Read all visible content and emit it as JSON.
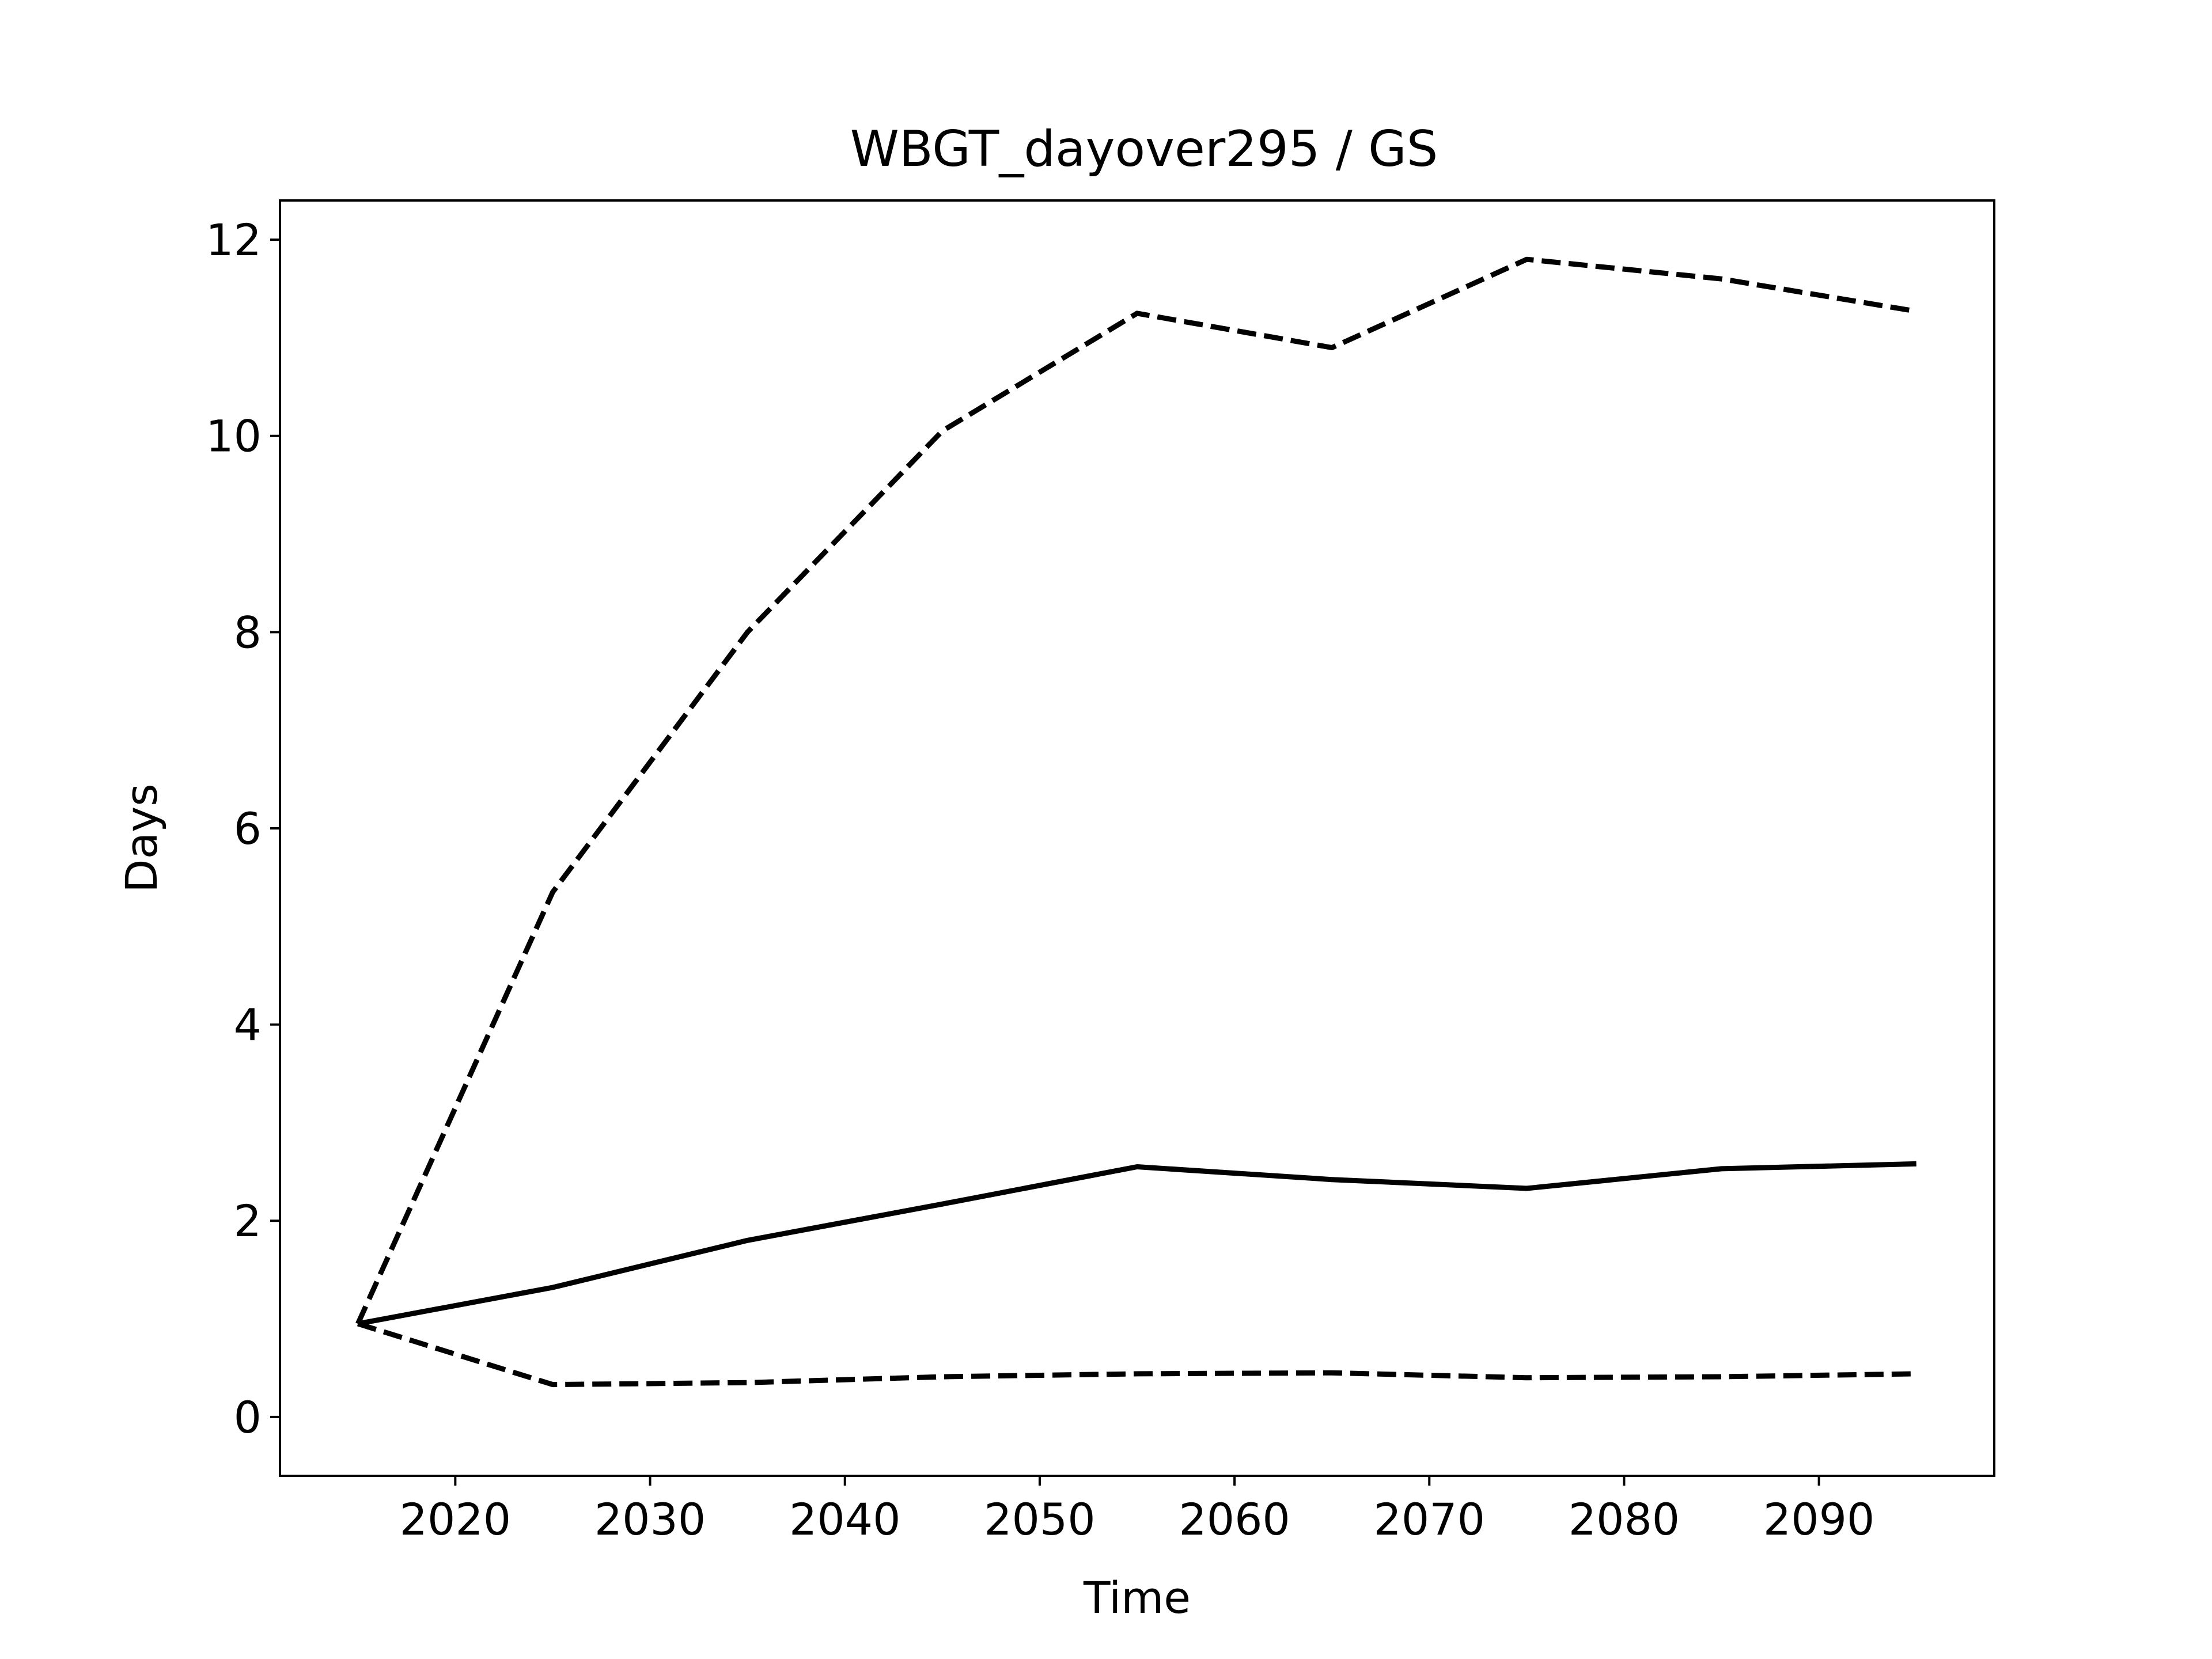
{
  "chart_data": {
    "type": "line",
    "title": "WBGT_dayover295 / GS",
    "xlabel": "Time",
    "ylabel": "Days",
    "xlim": [
      2011,
      2099
    ],
    "ylim": [
      -0.6,
      12.4
    ],
    "grid": false,
    "legend": "none",
    "x_ticks": [
      2020,
      2030,
      2040,
      2050,
      2060,
      2070,
      2080,
      2090
    ],
    "y_ticks": [
      0,
      2,
      4,
      6,
      8,
      10,
      12
    ],
    "x": [
      2015,
      2025,
      2035,
      2045,
      2055,
      2065,
      2075,
      2085,
      2095
    ],
    "series": [
      {
        "style": "dashed",
        "color": "#000000",
        "values": [
          0.95,
          5.35,
          8.0,
          10.05,
          11.25,
          10.9,
          11.8,
          11.6,
          11.27
        ]
      },
      {
        "style": "solid",
        "color": "#000000",
        "values": [
          0.95,
          1.32,
          1.8,
          2.17,
          2.55,
          2.42,
          2.33,
          2.53,
          2.58
        ]
      },
      {
        "style": "dashed",
        "color": "#000000",
        "values": [
          0.95,
          0.33,
          0.35,
          0.41,
          0.44,
          0.45,
          0.4,
          0.41,
          0.44
        ]
      }
    ]
  }
}
